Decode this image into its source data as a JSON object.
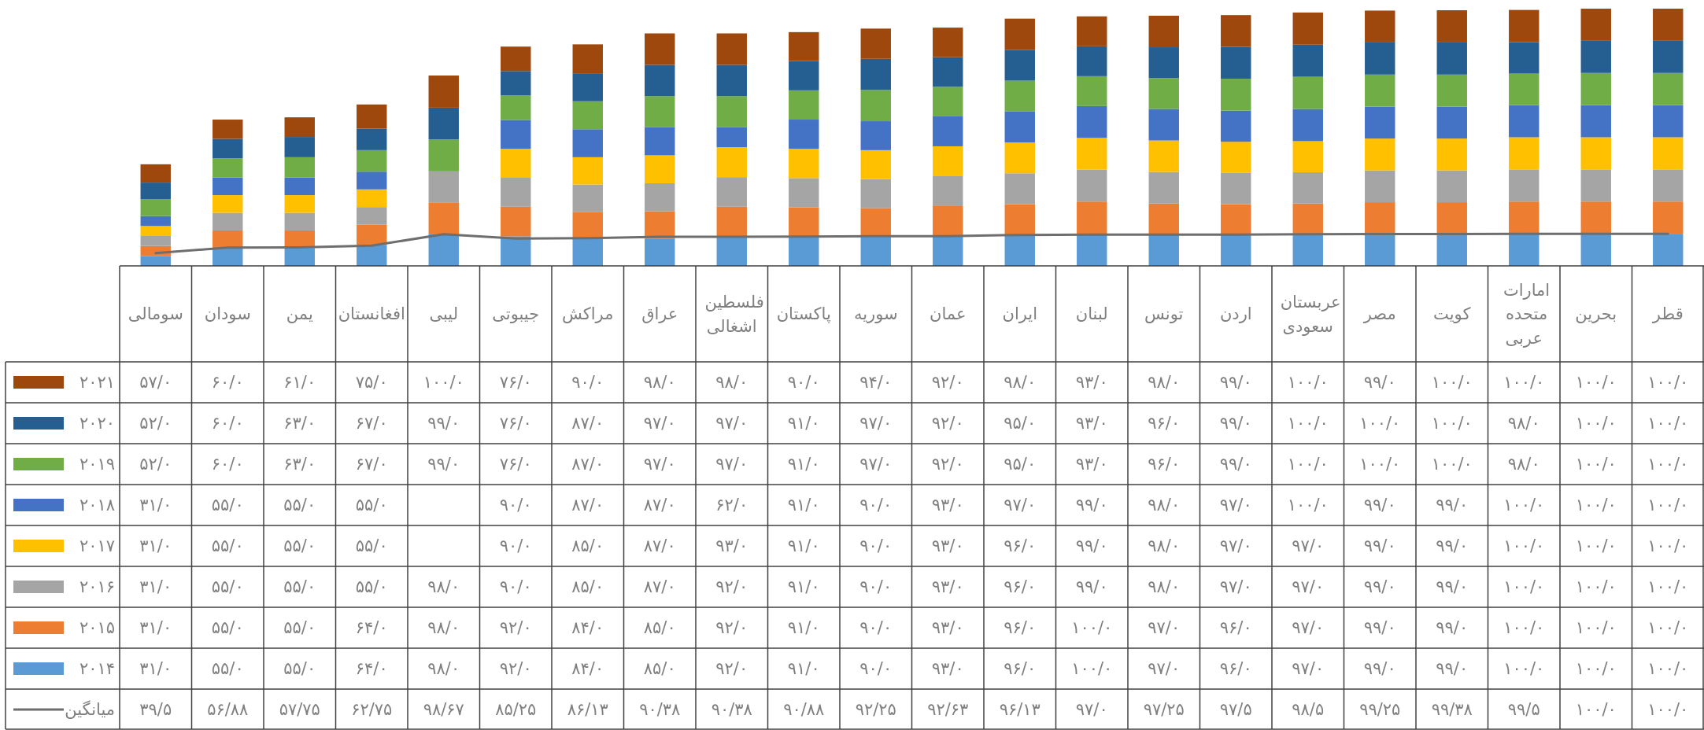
{
  "chart_data": {
    "type": "bar",
    "stacked": true,
    "legend": "bottom left",
    "categories": [
      "سومالی",
      "سودان",
      "یمن",
      "افغانستان",
      "لیبی",
      "جیبوتی",
      "مراکش",
      "عراق",
      "فلسطین اشغالی",
      "پاکستان",
      "سوریه",
      "عمان",
      "ایران",
      "لبنان",
      "تونس",
      "اردن",
      "عربستان سعودی",
      "مصر",
      "کویت",
      "امارات متحده عربی",
      "بحرین",
      "قطر"
    ],
    "series": [
      {
        "name": "۲۰۱۴",
        "color": "#5b9bd5",
        "values": [
          31,
          55,
          55,
          64,
          98,
          92,
          84,
          85,
          92,
          91,
          90,
          93,
          96,
          100,
          97,
          96,
          97,
          99,
          99,
          100,
          100,
          100
        ],
        "value_labels": [
          "۳۱/۰",
          "۵۵/۰",
          "۵۵/۰",
          "۶۴/۰",
          "۹۸/۰",
          "۹۲/۰",
          "۸۴/۰",
          "۸۵/۰",
          "۹۲/۰",
          "۹۱/۰",
          "۹۰/۰",
          "۹۳/۰",
          "۹۶/۰",
          "۱۰۰/۰",
          "۹۷/۰",
          "۹۶/۰",
          "۹۷/۰",
          "۹۹/۰",
          "۹۹/۰",
          "۱۰۰/۰",
          "۱۰۰/۰",
          "۱۰۰/۰"
        ]
      },
      {
        "name": "۲۰۱۵",
        "color": "#ed7d31",
        "values": [
          31,
          55,
          55,
          64,
          98,
          92,
          84,
          85,
          92,
          91,
          90,
          93,
          96,
          100,
          97,
          96,
          97,
          99,
          99,
          100,
          100,
          100
        ],
        "value_labels": [
          "۳۱/۰",
          "۵۵/۰",
          "۵۵/۰",
          "۶۴/۰",
          "۹۸/۰",
          "۹۲/۰",
          "۸۴/۰",
          "۸۵/۰",
          "۹۲/۰",
          "۹۱/۰",
          "۹۰/۰",
          "۹۳/۰",
          "۹۶/۰",
          "۱۰۰/۰",
          "۹۷/۰",
          "۹۶/۰",
          "۹۷/۰",
          "۹۹/۰",
          "۹۹/۰",
          "۱۰۰/۰",
          "۱۰۰/۰",
          "۱۰۰/۰"
        ]
      },
      {
        "name": "۲۰۱۶",
        "color": "#a5a5a5",
        "values": [
          31,
          55,
          55,
          55,
          98,
          90,
          85,
          87,
          92,
          91,
          90,
          93,
          96,
          99,
          98,
          97,
          97,
          99,
          99,
          100,
          100,
          100
        ],
        "value_labels": [
          "۳۱/۰",
          "۵۵/۰",
          "۵۵/۰",
          "۵۵/۰",
          "۹۸/۰",
          "۹۰/۰",
          "۸۵/۰",
          "۸۷/۰",
          "۹۲/۰",
          "۹۱/۰",
          "۹۰/۰",
          "۹۳/۰",
          "۹۶/۰",
          "۹۹/۰",
          "۹۸/۰",
          "۹۷/۰",
          "۹۷/۰",
          "۹۹/۰",
          "۹۹/۰",
          "۱۰۰/۰",
          "۱۰۰/۰",
          "۱۰۰/۰"
        ]
      },
      {
        "name": "۲۰۱۷",
        "color": "#ffc000",
        "values": [
          31,
          55,
          55,
          55,
          null,
          90,
          85,
          87,
          93,
          91,
          90,
          93,
          96,
          99,
          98,
          97,
          97,
          99,
          99,
          100,
          100,
          100
        ],
        "value_labels": [
          "۳۱/۰",
          "۵۵/۰",
          "۵۵/۰",
          "۵۵/۰",
          null,
          "۹۰/۰",
          "۸۵/۰",
          "۸۷/۰",
          "۹۳/۰",
          "۹۱/۰",
          "۹۰/۰",
          "۹۳/۰",
          "۹۶/۰",
          "۹۹/۰",
          "۹۸/۰",
          "۹۷/۰",
          "۹۷/۰",
          "۹۹/۰",
          "۹۹/۰",
          "۱۰۰/۰",
          "۱۰۰/۰",
          "۱۰۰/۰"
        ]
      },
      {
        "name": "۲۰۱۸",
        "color": "#4472c4",
        "values": [
          31,
          55,
          55,
          55,
          null,
          90,
          87,
          87,
          62,
          91,
          90,
          93,
          97,
          99,
          98,
          97,
          100,
          99,
          99,
          100,
          100,
          100
        ],
        "value_labels": [
          "۳۱/۰",
          "۵۵/۰",
          "۵۵/۰",
          "۵۵/۰",
          null,
          "۹۰/۰",
          "۸۷/۰",
          "۸۷/۰",
          "۶۲/۰",
          "۹۱/۰",
          "۹۰/۰",
          "۹۳/۰",
          "۹۷/۰",
          "۹۹/۰",
          "۹۸/۰",
          "۹۷/۰",
          "۱۰۰/۰",
          "۹۹/۰",
          "۹۹/۰",
          "۱۰۰/۰",
          "۱۰۰/۰",
          "۱۰۰/۰"
        ]
      },
      {
        "name": "۲۰۱۹",
        "color": "#70ad47",
        "values": [
          52,
          60,
          63,
          67,
          99,
          76,
          87,
          97,
          97,
          91,
          97,
          92,
          95,
          93,
          96,
          99,
          100,
          100,
          100,
          98,
          100,
          100
        ],
        "value_labels": [
          "۵۲/۰",
          "۶۰/۰",
          "۶۳/۰",
          "۶۷/۰",
          "۹۹/۰",
          "۷۶/۰",
          "۸۷/۰",
          "۹۷/۰",
          "۹۷/۰",
          "۹۱/۰",
          "۹۷/۰",
          "۹۲/۰",
          "۹۵/۰",
          "۹۳/۰",
          "۹۶/۰",
          "۹۹/۰",
          "۱۰۰/۰",
          "۱۰۰/۰",
          "۱۰۰/۰",
          "۹۸/۰",
          "۱۰۰/۰",
          "۱۰۰/۰"
        ]
      },
      {
        "name": "۲۰۲۰",
        "color": "#255e91",
        "values": [
          52,
          60,
          63,
          67,
          99,
          76,
          87,
          97,
          97,
          91,
          97,
          92,
          95,
          93,
          96,
          99,
          100,
          100,
          100,
          98,
          100,
          100
        ],
        "value_labels": [
          "۵۲/۰",
          "۶۰/۰",
          "۶۳/۰",
          "۶۷/۰",
          "۹۹/۰",
          "۷۶/۰",
          "۸۷/۰",
          "۹۷/۰",
          "۹۷/۰",
          "۹۱/۰",
          "۹۷/۰",
          "۹۲/۰",
          "۹۵/۰",
          "۹۳/۰",
          "۹۶/۰",
          "۹۹/۰",
          "۱۰۰/۰",
          "۱۰۰/۰",
          "۱۰۰/۰",
          "۹۸/۰",
          "۱۰۰/۰",
          "۱۰۰/۰"
        ]
      },
      {
        "name": "۲۰۲۱",
        "color": "#9e480e",
        "values": [
          57,
          60,
          61,
          75,
          100,
          76,
          90,
          98,
          98,
          90,
          94,
          92,
          98,
          93,
          98,
          99,
          100,
          99,
          100,
          100,
          100,
          100
        ],
        "value_labels": [
          "۵۷/۰",
          "۶۰/۰",
          "۶۱/۰",
          "۷۵/۰",
          "۱۰۰/۰",
          "۷۶/۰",
          "۹۰/۰",
          "۹۸/۰",
          "۹۸/۰",
          "۹۰/۰",
          "۹۴/۰",
          "۹۲/۰",
          "۹۸/۰",
          "۹۳/۰",
          "۹۸/۰",
          "۹۹/۰",
          "۱۰۰/۰",
          "۹۹/۰",
          "۱۰۰/۰",
          "۱۰۰/۰",
          "۱۰۰/۰",
          "۱۰۰/۰"
        ]
      },
      {
        "name": "میانگین",
        "type": "line",
        "color": "#6e6e6e",
        "values": [
          39.5,
          56.88,
          57.75,
          62.75,
          98.67,
          85.25,
          86.13,
          90.38,
          90.38,
          90.88,
          92.25,
          92.63,
          96.13,
          97.0,
          97.25,
          97.5,
          98.5,
          99.25,
          99.38,
          99.5,
          100.0,
          100.0
        ],
        "value_labels": [
          "۳۹/۵",
          "۵۶/۸۸",
          "۵۷/۷۵",
          "۶۲/۷۵",
          "۹۸/۶۷",
          "۸۵/۲۵",
          "۸۶/۱۳",
          "۹۰/۳۸",
          "۹۰/۳۸",
          "۹۰/۸۸",
          "۹۲/۲۵",
          "۹۲/۶۳",
          "۹۶/۱۳",
          "۹۷/۰",
          "۹۷/۲۵",
          "۹۷/۵",
          "۹۸/۵",
          "۹۹/۲۵",
          "۹۹/۳۸",
          "۹۹/۵",
          "۱۰۰/۰",
          "۱۰۰/۰"
        ]
      }
    ]
  }
}
